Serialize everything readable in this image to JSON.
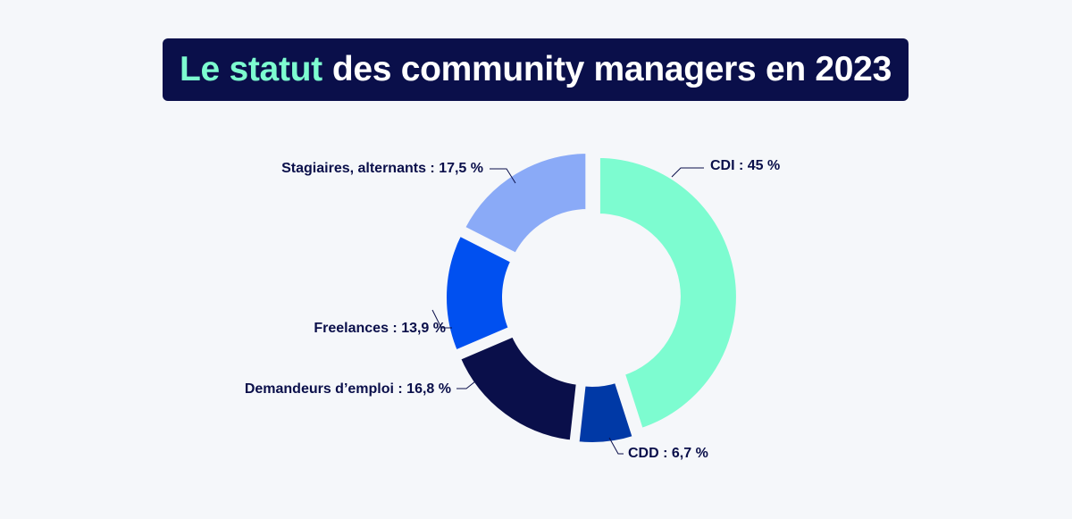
{
  "title": {
    "highlight": "Le statut",
    "rest": "des community managers en 2023"
  },
  "colors": {
    "background": "#f5f7fa",
    "title_background": "#0a0f4a",
    "title_accent": "#7dfcd0",
    "label_text": "#0a0f4a"
  },
  "chart_data": {
    "type": "pie",
    "variant": "donut",
    "title": "Le statut des community managers en 2023",
    "unit": "%",
    "slices": [
      {
        "label": "CDI : 45 %",
        "value": 45,
        "color": "#7dfcd0"
      },
      {
        "label": "CDD : 6,7 %",
        "value": 6.7,
        "color": "#0039a6"
      },
      {
        "label": "Demandeurs d’emploi : 16,8 %",
        "value": 16.8,
        "color": "#0a0f4a"
      },
      {
        "label": "Freelances : 13,9 %",
        "value": 13.9,
        "color": "#0050f0"
      },
      {
        "label": "Stagiaires, alternants : 17,5 %",
        "value": 17.5,
        "color": "#8aaaf7"
      }
    ]
  }
}
